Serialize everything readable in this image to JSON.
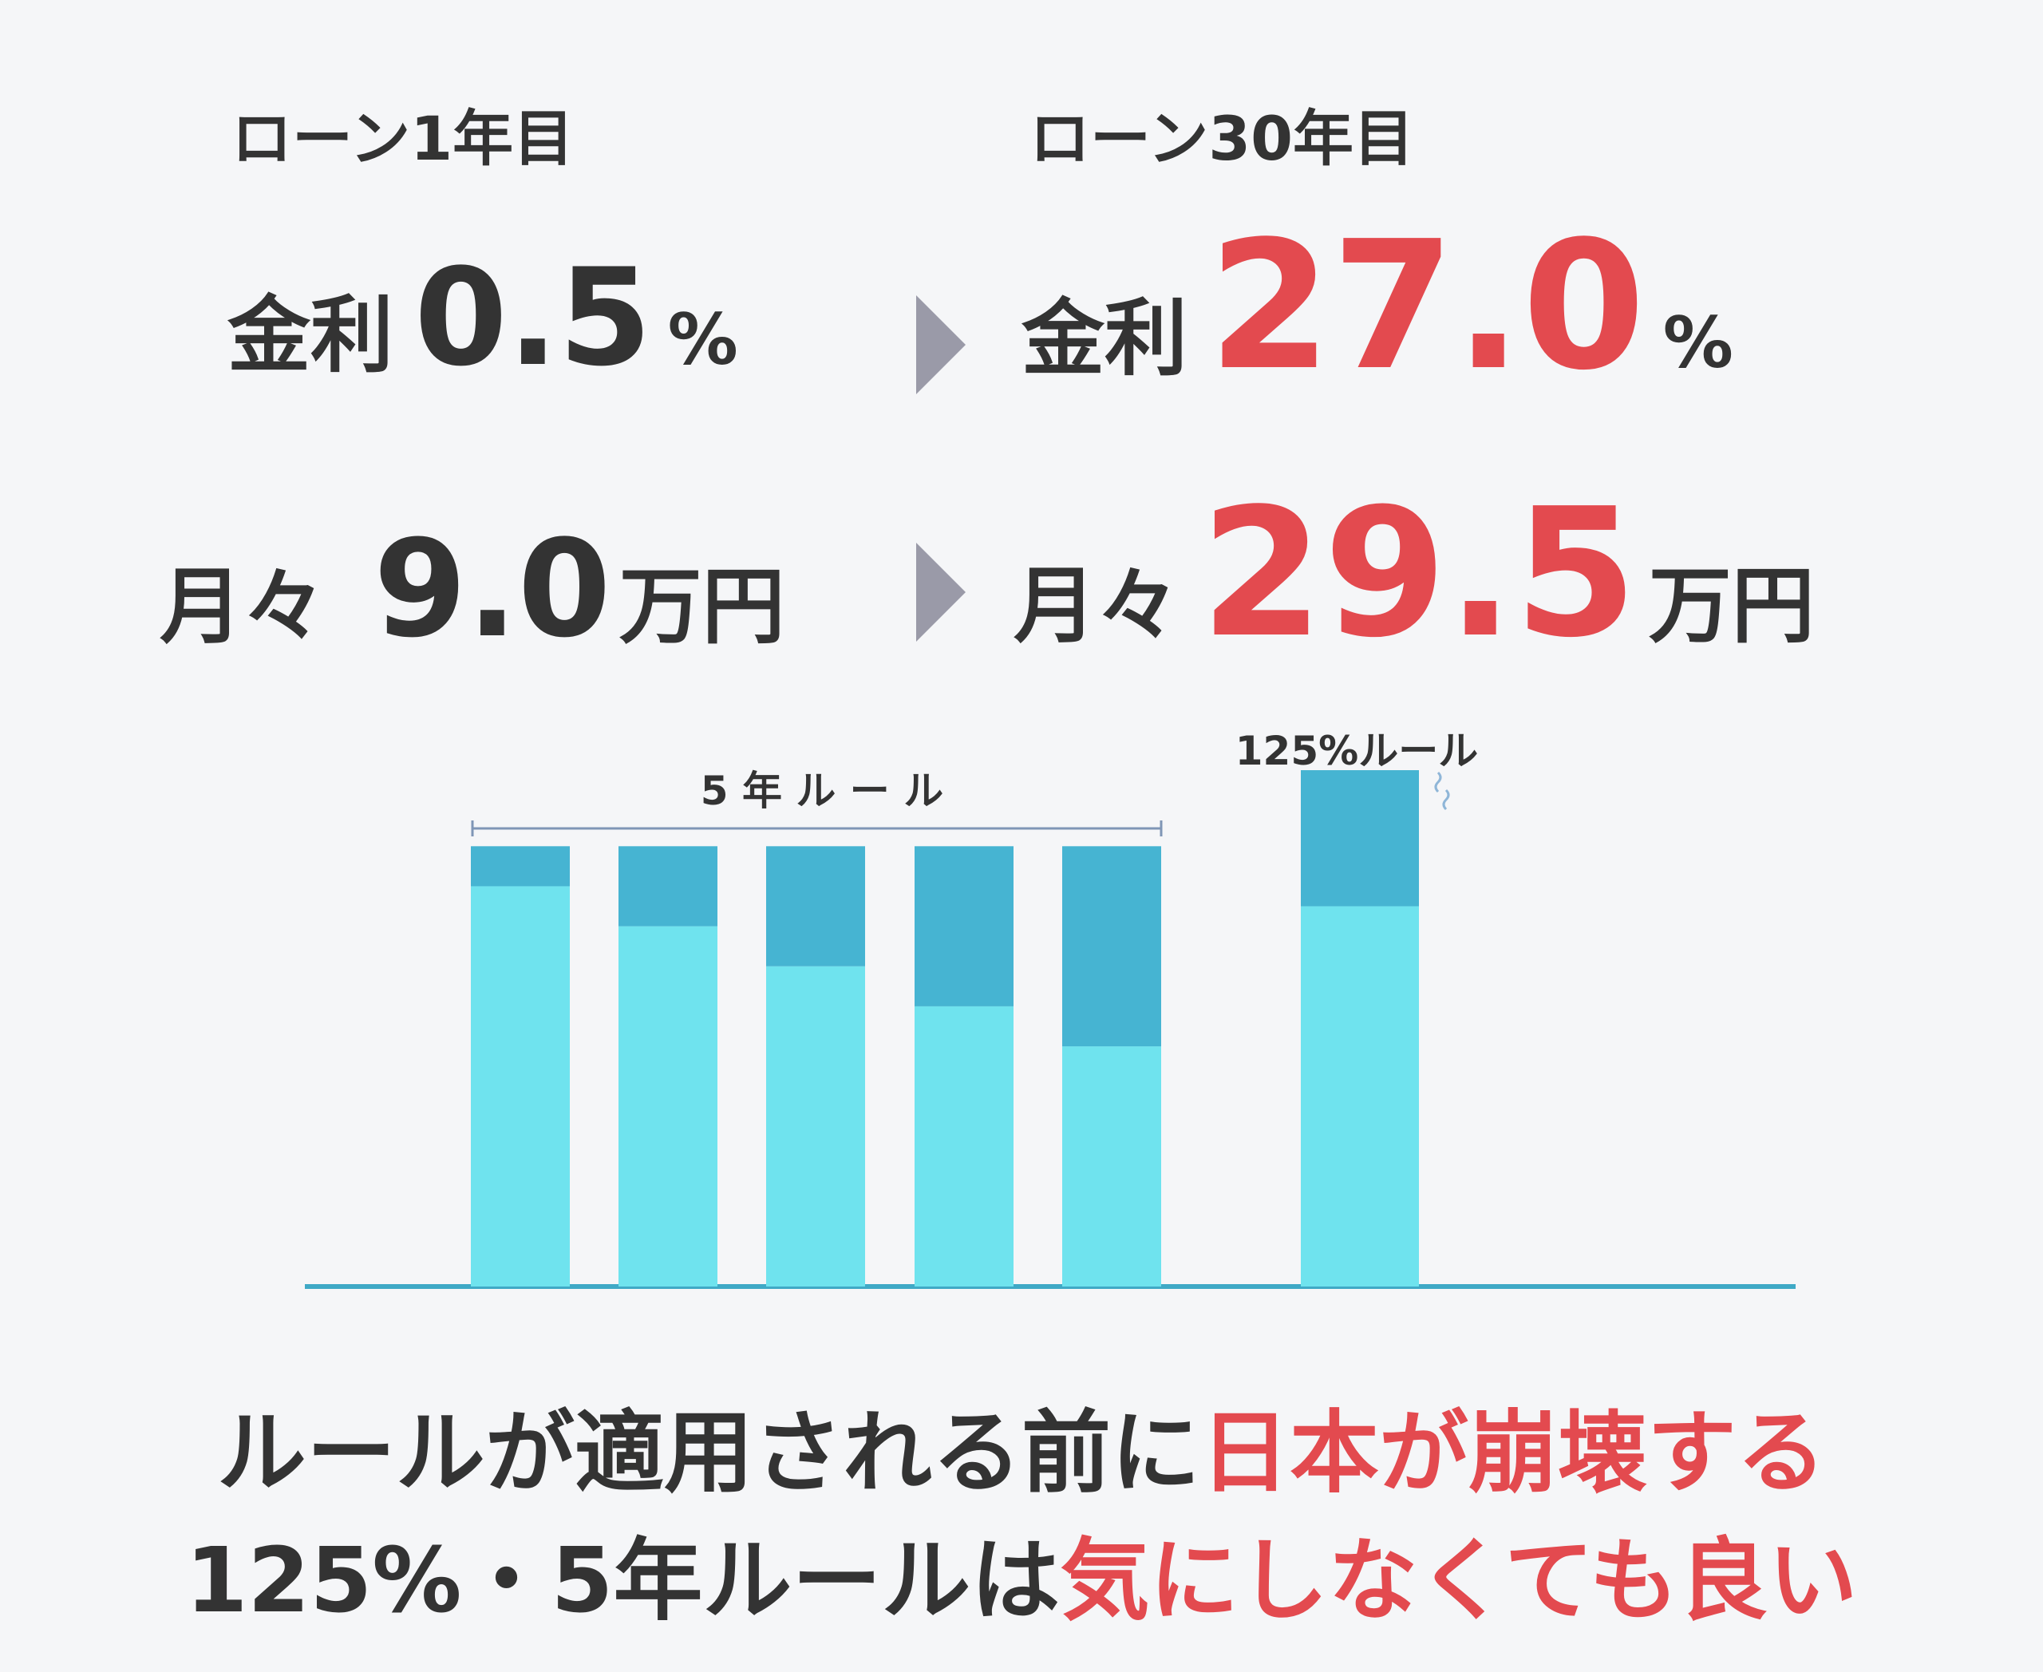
{
  "header": {
    "left_label": "ローン1年目",
    "right_label": "ローン30年目"
  },
  "rate_row": {
    "label": "金利",
    "left_value": "0.5",
    "right_value": "27.0",
    "unit": "%"
  },
  "payment_row": {
    "label": "月々",
    "left_value": "9.0",
    "right_value": "29.5",
    "unit": "万円"
  },
  "colors": {
    "dark_text": "#333333",
    "accent_red": "#e34a4f",
    "bar_light": "#6fe3ee",
    "bar_dark": "#46b4d2",
    "arrow": "#9a9aa8"
  },
  "chart_data": {
    "type": "bar",
    "stacked": true,
    "categories": [
      "",
      "",
      "",
      "",
      "",
      ""
    ],
    "series": [
      {
        "values": [
          100,
          90,
          80,
          70,
          60,
          95
        ]
      },
      {
        "values": [
          10,
          20,
          30,
          40,
          50,
          34
        ]
      }
    ],
    "ylim": [
      0,
      130
    ],
    "grid": false,
    "annotations": {
      "five_year_rule": "5 年 ル ー ル",
      "rule_125": "125%ルール"
    }
  },
  "footer": {
    "line1_dark": "ルールが適用される前に",
    "line1_red": "日本が崩壊する",
    "line2_dark": "125%・5年ルールは",
    "line2_red": "気にしなくても良い"
  }
}
